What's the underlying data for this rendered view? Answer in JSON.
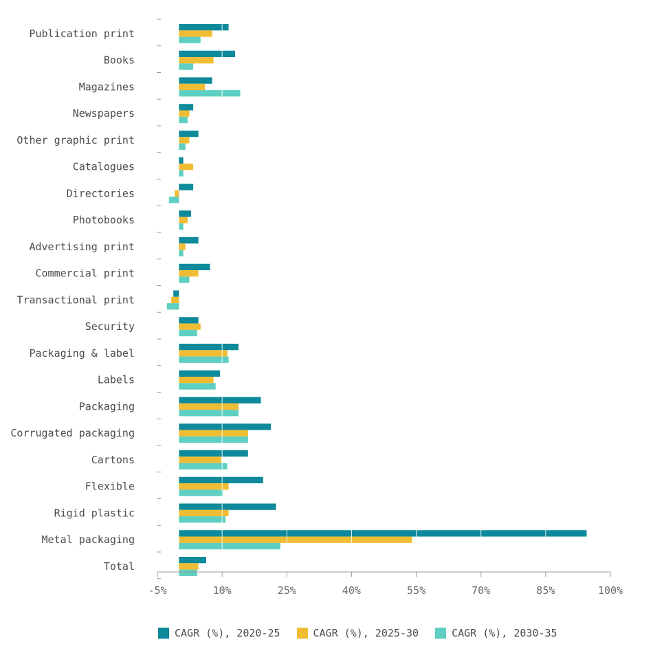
{
  "chart_data": {
    "type": "bar",
    "orientation": "horizontal",
    "categories": [
      "Publication print",
      "Books",
      "Magazines",
      "Newspapers",
      "Other graphic print",
      "Catalogues",
      "Directories",
      "Photobooks",
      "Advertising print",
      "Commercial print",
      "Transactional print",
      "Security",
      "Packaging & label",
      "Labels",
      "Packaging",
      "Corrugated packaging",
      "Cartons",
      "Flexible",
      "Rigid plastic",
      "Metal packaging",
      "Total"
    ],
    "series": [
      {
        "name": "CAGR (%), 2020-25",
        "color": "#0e8a9a",
        "values": [
          11.5,
          13,
          7.7,
          3.3,
          4.5,
          1,
          3.3,
          2.8,
          4.5,
          7.2,
          -1.3,
          4.5,
          13.8,
          9.5,
          19,
          21.3,
          16,
          19.5,
          22.5,
          94.5,
          6.3
        ]
      },
      {
        "name": "CAGR (%), 2025-30",
        "color": "#f0bc34",
        "values": [
          7.7,
          8,
          6,
          2.4,
          2.4,
          3.3,
          -1,
          2,
          1.5,
          4.5,
          -1.8,
          5,
          11.2,
          8,
          13.8,
          16,
          9.8,
          11.5,
          11.5,
          54,
          4.5
        ]
      },
      {
        "name": "CAGR (%), 2030-35",
        "color": "#5ecfc0",
        "values": [
          5,
          3.3,
          14.2,
          2,
          1.5,
          1,
          -2.3,
          1,
          1,
          2.4,
          -2.8,
          4.2,
          11.5,
          8.5,
          13.8,
          16,
          11.2,
          10.2,
          10.8,
          23.5,
          4.2
        ]
      }
    ],
    "xticks": [
      "-5%",
      "10%",
      "25%",
      "40%",
      "55%",
      "70%",
      "85%",
      "100%"
    ],
    "xtick_values": [
      -5,
      10,
      25,
      40,
      55,
      70,
      85,
      100
    ],
    "xlim": [
      -5,
      100
    ],
    "legend_position": "bottom"
  }
}
